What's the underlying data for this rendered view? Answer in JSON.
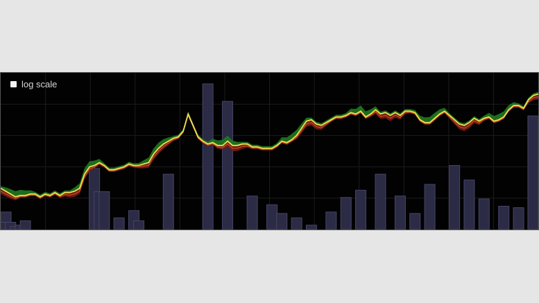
{
  "controls": {
    "log_scale_label": "log scale",
    "log_scale_checked": false
  },
  "colors": {
    "background": "#020202",
    "grid": "#1c1c1c",
    "volume_bar_fill": "#2b2b45",
    "volume_bar_stroke": "#454565",
    "price_line": "#f0e050",
    "up_band": "#1f7a1f",
    "down_band": "#7a1c14"
  },
  "chart_data": {
    "type": "line",
    "title": "",
    "xlabel": "",
    "ylabel": "",
    "grid": true,
    "log_scale": false,
    "price_range": [
      0,
      100
    ],
    "volume_range": [
      0,
      100
    ],
    "x": [
      0,
      1,
      2,
      3,
      4,
      5,
      6,
      7,
      8,
      9,
      10,
      11,
      12,
      13,
      14,
      15,
      16,
      17,
      18,
      19,
      20,
      21,
      22,
      23,
      24,
      25,
      26,
      27,
      28,
      29,
      30,
      31,
      32,
      33,
      34,
      35,
      36,
      37,
      38,
      39,
      40,
      41,
      42,
      43,
      44,
      45,
      46,
      47,
      48,
      49,
      50,
      51,
      52,
      53,
      54,
      55,
      56,
      57,
      58,
      59,
      60,
      61,
      62,
      63,
      64,
      65,
      66,
      67,
      68,
      69,
      70,
      71,
      72,
      73,
      74,
      75,
      76,
      77,
      78,
      79,
      80,
      81,
      82,
      83,
      84,
      85,
      86,
      87,
      88,
      89,
      90,
      91,
      92,
      93,
      94,
      95,
      96,
      97,
      98,
      99,
      100,
      101,
      102,
      103,
      104,
      105,
      106,
      107,
      108,
      109
    ],
    "series": [
      {
        "type": "line",
        "values": [
          24,
          22,
          20,
          18,
          19,
          19,
          20,
          20,
          18,
          20,
          19,
          21,
          19,
          21,
          21,
          22,
          24,
          34,
          39,
          40,
          42,
          40,
          37,
          37,
          38,
          39,
          41,
          40,
          40,
          41,
          42,
          48,
          52,
          55,
          57,
          59,
          60,
          64,
          76,
          68,
          60,
          57,
          55,
          56,
          54,
          54,
          57,
          54,
          54,
          55,
          55,
          53,
          53,
          52,
          52,
          52,
          54,
          57,
          56,
          58,
          61,
          66,
          71,
          72,
          69,
          68,
          70,
          72,
          74,
          74,
          75,
          77,
          76,
          78,
          74,
          76,
          79,
          76,
          77,
          75,
          77,
          75,
          78,
          78,
          77,
          72,
          70,
          70,
          73,
          76,
          78,
          75,
          72,
          69,
          68,
          70,
          73,
          71,
          73,
          74,
          71,
          72,
          74,
          79,
          82,
          82,
          80,
          86,
          89,
          90
        ]
      },
      {
        "type": "bar",
        "values": [
          12,
          5,
          5,
          2,
          3,
          6,
          0,
          0,
          0,
          0,
          0,
          0,
          0,
          0,
          0,
          0,
          0,
          0,
          0,
          42,
          26,
          26,
          0,
          0,
          8,
          0,
          0,
          13,
          6,
          0,
          0,
          0,
          0,
          0,
          38,
          0,
          0,
          0,
          0,
          0,
          0,
          0,
          100,
          0,
          0,
          0,
          88,
          0,
          0,
          0,
          0,
          23,
          0,
          0,
          0,
          17,
          0,
          11,
          0,
          0,
          8,
          0,
          0,
          3,
          0,
          0,
          0,
          12,
          0,
          0,
          22,
          0,
          0,
          27,
          0,
          0,
          0,
          38,
          0,
          0,
          0,
          23,
          0,
          0,
          11,
          0,
          0,
          31,
          0,
          0,
          0,
          0,
          44,
          0,
          0,
          34,
          0,
          0,
          21,
          0,
          0,
          0,
          16,
          0,
          0,
          15,
          0,
          0,
          6,
          78
        ]
      }
    ]
  }
}
